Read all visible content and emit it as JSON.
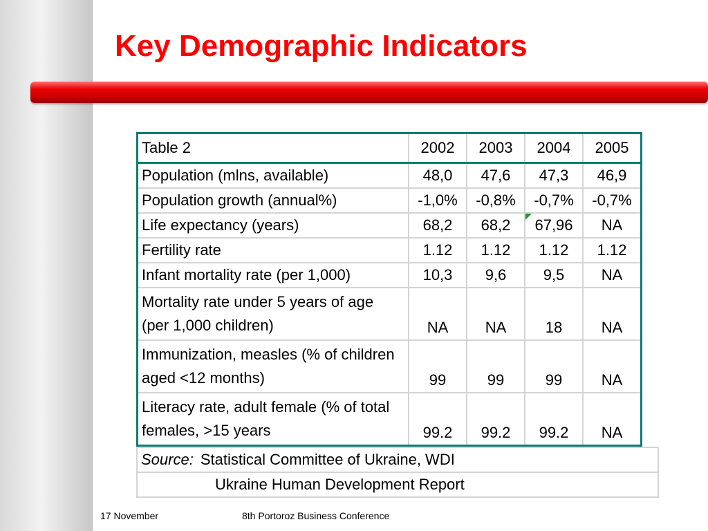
{
  "title": "Key Demographic Indicators",
  "table": {
    "caption": "Table 2",
    "years": [
      "2002",
      "2003",
      "2004",
      "2005"
    ],
    "rows": [
      {
        "label": "Population (mlns, available)",
        "values": [
          "48,0",
          "47,6",
          "47,3",
          "46,9"
        ]
      },
      {
        "label": "Population growth (annual%)",
        "values": [
          "-1,0%",
          "-0,8%",
          "-0,7%",
          "-0,7%"
        ]
      },
      {
        "label": "Life expectancy (years)",
        "values": [
          "68,2",
          "68,2",
          "67,96",
          "NA"
        ]
      },
      {
        "label": "Fertility rate",
        "values": [
          "1.12",
          "1.12",
          "1.12",
          "1.12"
        ]
      },
      {
        "label": "Infant mortality rate (per 1,000)",
        "values": [
          "10,3",
          "9,6",
          "9,5",
          "NA"
        ]
      },
      {
        "label": "Mortality rate under 5 years of age (per 1,000 children)",
        "values": [
          "NA",
          "NA",
          "18",
          "NA"
        ]
      },
      {
        "label": "Immunization, measles (% of children aged <12 months)",
        "values": [
          "99",
          "99",
          "99",
          "NA"
        ]
      },
      {
        "label": "Literacy rate, adult female (% of total females, >15 years",
        "values": [
          "99.2",
          "99.2",
          "99.2",
          "NA"
        ]
      }
    ]
  },
  "source": {
    "label": "Source:",
    "line1": "Statistical Committee of Ukraine, WDI",
    "line2": "Ukraine Human Development Report"
  },
  "footer": {
    "date": "17 November",
    "conference": "8th Portoroz Business Conference"
  },
  "colors": {
    "title": "#ff0000",
    "bar": "#cc0000",
    "table_border": "#0f7b73"
  }
}
